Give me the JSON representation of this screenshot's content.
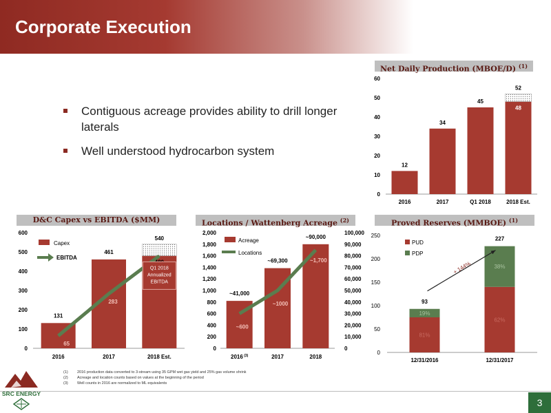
{
  "header": {
    "title": "Corporate Execution"
  },
  "bullets": [
    "Contiguous acreage provides ability to drill longer laterals",
    "Well understood hydrocarbon system"
  ],
  "panels": {
    "production": {
      "title": "Net Daily Production (MBOE/D)",
      "sup": "(1)"
    },
    "capex": {
      "title": "D&C Capex vs EBITDA ($MM)"
    },
    "locations": {
      "title": "Locations / Wattenberg Acreage",
      "sup": "(2)"
    },
    "reserves": {
      "title": "Proved Reserves (MMBOE)",
      "sup": "(1)"
    }
  },
  "chart_data": [
    {
      "id": "production",
      "type": "bar",
      "categories": [
        "2016",
        "2017",
        "Q1 2018",
        "2018 Est."
      ],
      "values": [
        12,
        34,
        45,
        48
      ],
      "top_segment": {
        "category": "2018 Est.",
        "value": 4,
        "pattern": "dotted"
      },
      "data_labels": [
        "12",
        "34",
        "45",
        "48"
      ],
      "total_label": "52",
      "ylim": [
        0,
        60
      ],
      "yticks": [
        0,
        10,
        20,
        30,
        40,
        50,
        60
      ],
      "bar_color": "#a63a30"
    },
    {
      "id": "capex",
      "type": "bar",
      "categories": [
        "2016",
        "2017",
        "2018 Est."
      ],
      "series": [
        {
          "name": "Capex",
          "values": [
            131,
            461,
            480
          ],
          "color": "#a63a30"
        },
        {
          "name": "EBITDA",
          "type": "line",
          "values": [
            65,
            283,
            480
          ],
          "color": "#5a7d4f"
        }
      ],
      "top_segment": {
        "category": "2018 Est.",
        "from": 480,
        "to": 540,
        "pattern": "dotted"
      },
      "capex_labels": [
        "131",
        "461",
        "540"
      ],
      "ebitda_labels": [
        "65",
        "283",
        "480"
      ],
      "annotation": "Q1 2018 Annualized EBITDA",
      "ylim": [
        0,
        600
      ],
      "yticks": [
        0,
        100,
        200,
        300,
        400,
        500,
        600
      ]
    },
    {
      "id": "locations",
      "type": "bar",
      "categories": [
        "2016",
        "2017",
        "2018"
      ],
      "category_sup": [
        "(3)",
        "",
        ""
      ],
      "series": [
        {
          "name": "Acreage",
          "values": [
            41000,
            69300,
            90000
          ],
          "axis": "right",
          "color": "#a63a30"
        },
        {
          "name": "Locations",
          "type": "line",
          "values": [
            600,
            1000,
            1700
          ],
          "axis": "left",
          "color": "#5a7d4f"
        }
      ],
      "acreage_labels": [
        "~41,000",
        "~69,300",
        "~90,000"
      ],
      "location_labels": [
        "~600",
        "~1000",
        "~1,700"
      ],
      "ylim_left": [
        0,
        2000
      ],
      "yticks_left": [
        "0",
        "200",
        "400",
        "600",
        "800",
        "1,000",
        "1,200",
        "1,400",
        "1,600",
        "1,800",
        "2,000"
      ],
      "ylim_right": [
        0,
        100000
      ],
      "yticks_right": [
        "0",
        "10,000",
        "20,000",
        "30,000",
        "40,000",
        "50,000",
        "60,000",
        "70,000",
        "80,000",
        "90,000",
        "100,000"
      ]
    },
    {
      "id": "reserves",
      "type": "bar",
      "stacked": true,
      "categories": [
        "12/31/2016",
        "12/31/2017"
      ],
      "series": [
        {
          "name": "PUD",
          "values": [
            75,
            140
          ],
          "color": "#a63a30",
          "labels": [
            "81%",
            "62%"
          ]
        },
        {
          "name": "PDP",
          "values": [
            18,
            87
          ],
          "color": "#5a7d4f",
          "labels": [
            "19%",
            "38%"
          ]
        }
      ],
      "totals": [
        "93",
        "227"
      ],
      "arrow_label": "+ 144%",
      "ylim": [
        0,
        250
      ],
      "yticks": [
        0,
        50,
        100,
        150,
        200,
        250
      ]
    }
  ],
  "footnotes": [
    {
      "n": "(1)",
      "text": "2016 production data converted to 3-stream using 35 GPM wet gas yield and 25% gas volume shrink"
    },
    {
      "n": "(2)",
      "text": "Acreage and location counts based on values at the beginning of the period"
    },
    {
      "n": "(3)",
      "text": "Well counts in 2016 are normalized to ML equivalents"
    }
  ],
  "logo": {
    "text": "SRC ENERGY"
  },
  "page_number": "3"
}
